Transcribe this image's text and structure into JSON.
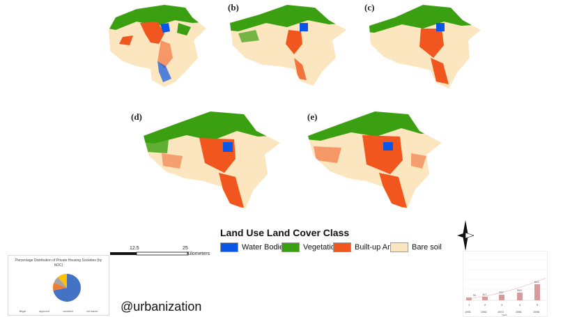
{
  "panels": [
    {
      "label": ""
    },
    {
      "label": "(b)"
    },
    {
      "label": "(c)"
    },
    {
      "label": "(d)"
    },
    {
      "label": "(e)"
    }
  ],
  "legend": {
    "title": "Land Use Land Cover Class",
    "classes": [
      {
        "name": "Water Bodies",
        "color": "#0a56e6"
      },
      {
        "name": "Vegetation",
        "color": "#3aa012"
      },
      {
        "name": "Built-up Area",
        "color": "#f0561e"
      },
      {
        "name": "Bare soil",
        "color": "#fbe6bf"
      }
    ]
  },
  "scalebar": {
    "ticks": [
      "12.5",
      "25"
    ],
    "unit": "Kilometers"
  },
  "north_arrow": {
    "icon": "north-arrow-icon"
  },
  "pie_inset": {
    "title": "Percentage Distribution of Private Housing Societies (by NOC)",
    "legend": [
      "Illegal",
      "approved",
      "cancelled",
      "not issued"
    ],
    "slice_colors": [
      "#4472c4",
      "#ed7d31",
      "#a5a5a5",
      "#ffc000"
    ]
  },
  "bar_inset": {
    "years": [
      "1951",
      "1961",
      "1972",
      "1981",
      "1998"
    ],
    "indices": [
      "1",
      "2",
      "3",
      "4",
      "5"
    ],
    "values": [
      "91",
      "117",
      "237",
      "344",
      "641"
    ],
    "axis_label": "Years"
  },
  "watermark": "@urbanization"
}
